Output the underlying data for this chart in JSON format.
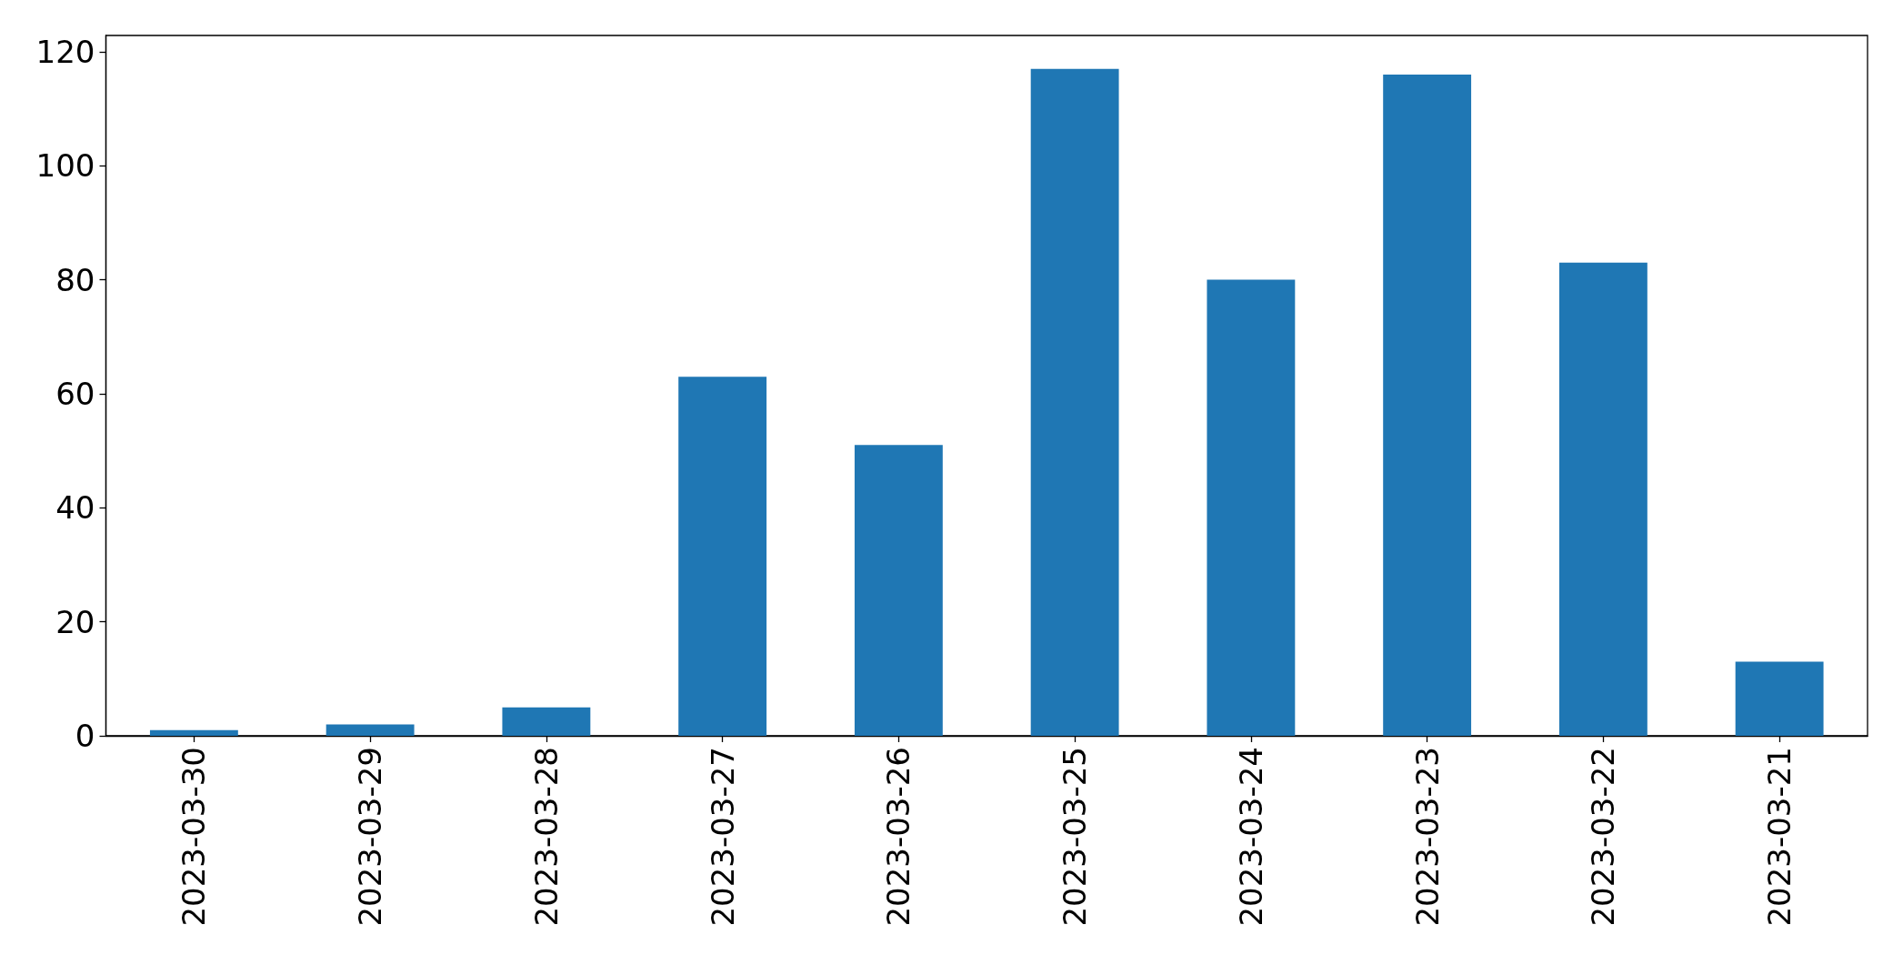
{
  "chart_data": {
    "type": "bar",
    "categories": [
      "2023-03-30",
      "2023-03-29",
      "2023-03-28",
      "2023-03-27",
      "2023-03-26",
      "2023-03-25",
      "2023-03-24",
      "2023-03-23",
      "2023-03-22",
      "2023-03-21"
    ],
    "values": [
      1,
      2,
      5,
      63,
      51,
      117,
      80,
      116,
      83,
      13
    ],
    "color": "#1f77b4",
    "ylim": [
      0,
      122.85
    ],
    "yticks": [
      0,
      20,
      40,
      60,
      80,
      100,
      120
    ],
    "grid": false
  }
}
